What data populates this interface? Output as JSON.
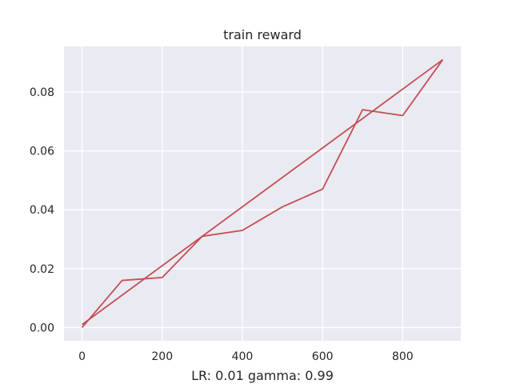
{
  "chart_data": {
    "type": "line",
    "title": "train reward",
    "xlabel": "LR: 0.01 gamma: 0.99",
    "ylabel": "",
    "xlim": [
      -45,
      945
    ],
    "ylim": [
      -0.0045,
      0.0955
    ],
    "xticks": [
      0,
      200,
      400,
      600,
      800
    ],
    "xtick_labels": [
      "0",
      "200",
      "400",
      "600",
      "800"
    ],
    "yticks": [
      0.0,
      0.02,
      0.04,
      0.06,
      0.08
    ],
    "ytick_labels": [
      "0.00",
      "0.02",
      "0.04",
      "0.06",
      "0.08"
    ],
    "grid": true,
    "legend": "none",
    "colors": {
      "background": "#eaeaf2",
      "grid": "#ffffff",
      "line": "#c44e52"
    },
    "series": [
      {
        "x": [
          0,
          100,
          200,
          300,
          400,
          500,
          600,
          700,
          800,
          900
        ],
        "values": [
          0.0,
          0.016,
          0.017,
          0.031,
          0.033,
          0.041,
          0.047,
          0.074,
          0.072,
          0.091
        ]
      },
      {
        "x": [
          0,
          900
        ],
        "values": [
          0.001,
          0.091
        ]
      }
    ]
  }
}
